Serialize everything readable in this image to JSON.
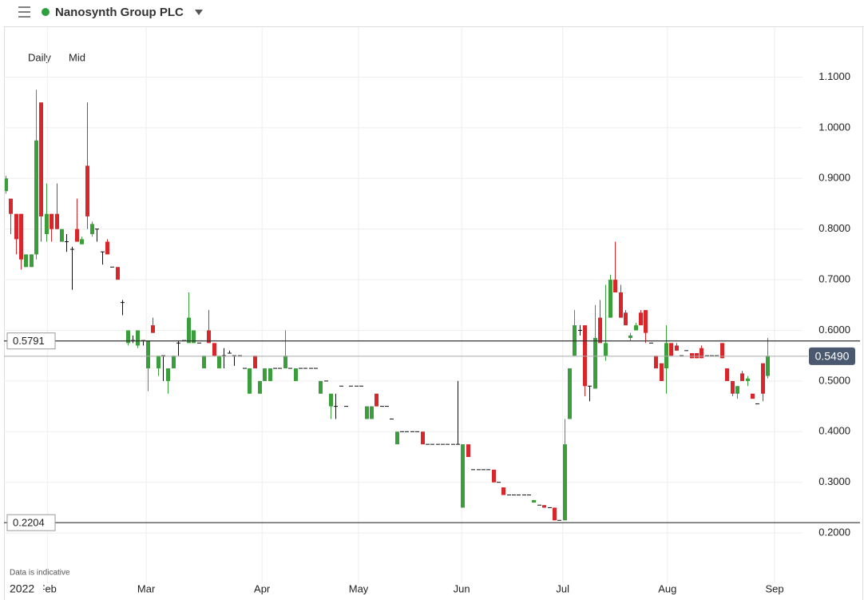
{
  "header": {
    "title": "Nanosynth Group PLC"
  },
  "chart_data": {
    "type": "candlestick",
    "interval": "Daily",
    "price_type": "Mid",
    "note": "Data is indicative",
    "year": "2022",
    "up_color": "#3a9f3a",
    "down_color": "#d9262b",
    "flat_color": "#111111",
    "xlim": [
      -0.3,
      156.9
    ],
    "xticks": [
      {
        "value": 8.3,
        "label": "Feb"
      },
      {
        "value": 27.7,
        "label": "Mar"
      },
      {
        "value": 50.5,
        "label": "Apr"
      },
      {
        "value": 69.5,
        "label": "May"
      },
      {
        "value": 89.8,
        "label": "Jun"
      },
      {
        "value": 109.7,
        "label": "Jul"
      },
      {
        "value": 130.3,
        "label": "Aug"
      },
      {
        "value": 151.4,
        "label": "Sep"
      }
    ],
    "ylim": [
      0.1008,
      1.1986
    ],
    "yticks": [
      {
        "value": 0.2,
        "label": "0.2000"
      },
      {
        "value": 0.3,
        "label": "0.3000"
      },
      {
        "value": 0.4,
        "label": "0.4000"
      },
      {
        "value": 0.5,
        "label": "0.5000"
      },
      {
        "value": 0.6,
        "label": "0.6000"
      },
      {
        "value": 0.7,
        "label": "0.7000"
      },
      {
        "value": 0.8,
        "label": "0.8000"
      },
      {
        "value": 0.9,
        "label": "0.9000"
      },
      {
        "value": 1.0,
        "label": "1.0000"
      },
      {
        "value": 1.1,
        "label": "1.1000"
      }
    ],
    "grid": true,
    "price_lines": [
      0.5791,
      0.2204
    ],
    "last_price": {
      "value": 0.549,
      "label": "0.5490"
    },
    "ohlc": [
      [
        0.875,
        0.905,
        0.87,
        0.9
      ],
      [
        0.86,
        0.86,
        0.79,
        0.83
      ],
      [
        0.83,
        0.83,
        0.75,
        0.78
      ],
      [
        0.83,
        0.83,
        0.72,
        0.74
      ],
      [
        0.725,
        0.75,
        0.725,
        0.75
      ],
      [
        0.725,
        0.75,
        0.725,
        0.75
      ],
      [
        0.75,
        1.075,
        0.74,
        0.975
      ],
      [
        1.05,
        1.05,
        0.775,
        0.825
      ],
      [
        0.79,
        0.89,
        0.775,
        0.83
      ],
      [
        0.83,
        0.83,
        0.775,
        0.8
      ],
      [
        0.83,
        0.89,
        0.8,
        0.8
      ],
      [
        0.775,
        0.8,
        0.775,
        0.8
      ],
      [
        0.775,
        0.79,
        0.755,
        0.775
      ],
      [
        0.76,
        0.765,
        0.68,
        0.76
      ],
      [
        0.8,
        0.86,
        0.78,
        0.775
      ],
      [
        0.77,
        0.785,
        0.77,
        0.78
      ],
      [
        0.925,
        1.05,
        0.8,
        0.825
      ],
      [
        0.79,
        0.815,
        0.785,
        0.81
      ],
      [
        0.8,
        0.8,
        0.775,
        0.8
      ],
      [
        0.755,
        0.755,
        0.73,
        0.755
      ],
      [
        0.775,
        0.78,
        0.75,
        0.75
      ],
      [
        0.725,
        0.725,
        0.725,
        0.725
      ],
      [
        0.725,
        0.725,
        0.7,
        0.7
      ],
      [
        0.655,
        0.66,
        0.63,
        0.655
      ],
      [
        0.575,
        0.6,
        0.57,
        0.6
      ],
      [
        0.58,
        0.59,
        0.575,
        0.58
      ],
      [
        0.57,
        0.6,
        0.565,
        0.6
      ],
      [
        0.58,
        0.58,
        0.57,
        0.58
      ],
      [
        0.525,
        0.58,
        0.48,
        0.58
      ],
      [
        0.61,
        0.625,
        0.595,
        0.595
      ],
      [
        0.525,
        0.55,
        0.51,
        0.55
      ],
      [
        0.55,
        0.55,
        0.5,
        0.55
      ],
      [
        0.5,
        0.525,
        0.475,
        0.525
      ],
      [
        0.525,
        0.55,
        0.525,
        0.55
      ],
      [
        0.575,
        0.58,
        0.55,
        0.575
      ],
      [
        0.58,
        0.58,
        0.58,
        0.58
      ],
      [
        0.575,
        0.675,
        0.575,
        0.625
      ],
      [
        0.575,
        0.6,
        0.575,
        0.6
      ],
      [
        0.575,
        0.575,
        0.575,
        0.575
      ],
      [
        0.525,
        0.55,
        0.525,
        0.55
      ],
      [
        0.6,
        0.64,
        0.575,
        0.575
      ],
      [
        0.575,
        0.575,
        0.55,
        0.55
      ],
      [
        0.525,
        0.55,
        0.525,
        0.55
      ],
      [
        0.55,
        0.565,
        0.525,
        0.55
      ],
      [
        0.555,
        0.56,
        0.555,
        0.555
      ],
      [
        0.55,
        0.55,
        0.53,
        0.55
      ],
      [
        0.55,
        0.55,
        0.55,
        0.55
      ],
      [
        0.525,
        0.525,
        0.525,
        0.525
      ],
      [
        0.475,
        0.525,
        0.475,
        0.525
      ],
      [
        0.55,
        0.55,
        0.525,
        0.525
      ],
      [
        0.475,
        0.5,
        0.475,
        0.5
      ],
      [
        0.5,
        0.525,
        0.5,
        0.525
      ],
      [
        0.5,
        0.525,
        0.5,
        0.525
      ],
      [
        0.525,
        0.525,
        0.525,
        0.525
      ],
      [
        0.525,
        0.525,
        0.525,
        0.525
      ],
      [
        0.525,
        0.6,
        0.525,
        0.55
      ],
      [
        0.525,
        0.525,
        0.525,
        0.525
      ],
      [
        0.5,
        0.525,
        0.5,
        0.525
      ],
      [
        0.525,
        0.525,
        0.525,
        0.525
      ],
      [
        0.525,
        0.525,
        0.525,
        0.525
      ],
      [
        0.525,
        0.525,
        0.525,
        0.525
      ],
      [
        0.525,
        0.525,
        0.525,
        0.525
      ],
      [
        0.475,
        0.5,
        0.475,
        0.5
      ],
      [
        0.5,
        0.5,
        0.5,
        0.5
      ],
      [
        0.45,
        0.475,
        0.425,
        0.475
      ],
      [
        0.45,
        0.475,
        0.425,
        0.45
      ],
      [
        0.49,
        0.49,
        0.49,
        0.49
      ],
      [
        0.45,
        0.45,
        0.45,
        0.45
      ],
      [
        0.49,
        0.49,
        0.49,
        0.49
      ],
      [
        0.49,
        0.49,
        0.49,
        0.49
      ],
      [
        0.49,
        0.49,
        0.49,
        0.49
      ],
      [
        0.425,
        0.45,
        0.425,
        0.45
      ],
      [
        0.425,
        0.45,
        0.425,
        0.45
      ],
      [
        0.475,
        0.475,
        0.45,
        0.45
      ],
      [
        0.45,
        0.45,
        0.45,
        0.45
      ],
      [
        0.45,
        0.45,
        0.45,
        0.45
      ],
      [
        0.425,
        0.425,
        0.425,
        0.425
      ],
      [
        0.375,
        0.4,
        0.375,
        0.4
      ],
      [
        0.4,
        0.4,
        0.4,
        0.4
      ],
      [
        0.4,
        0.4,
        0.4,
        0.4
      ],
      [
        0.4,
        0.4,
        0.4,
        0.4
      ],
      [
        0.4,
        0.4,
        0.4,
        0.4
      ],
      [
        0.4,
        0.4,
        0.375,
        0.375
      ],
      [
        0.375,
        0.375,
        0.375,
        0.375
      ],
      [
        0.375,
        0.375,
        0.375,
        0.375
      ],
      [
        0.375,
        0.375,
        0.375,
        0.375
      ],
      [
        0.375,
        0.375,
        0.375,
        0.375
      ],
      [
        0.375,
        0.375,
        0.375,
        0.375
      ],
      [
        0.375,
        0.375,
        0.375,
        0.375
      ],
      [
        0.375,
        0.5,
        0.375,
        0.375
      ],
      [
        0.25,
        0.375,
        0.25,
        0.375
      ],
      [
        0.375,
        0.375,
        0.35,
        0.35
      ],
      [
        0.325,
        0.325,
        0.325,
        0.325
      ],
      [
        0.325,
        0.325,
        0.325,
        0.325
      ],
      [
        0.325,
        0.325,
        0.325,
        0.325
      ],
      [
        0.325,
        0.325,
        0.325,
        0.325
      ],
      [
        0.325,
        0.325,
        0.3,
        0.3
      ],
      [
        0.3,
        0.3,
        0.3,
        0.3
      ],
      [
        0.29,
        0.29,
        0.275,
        0.275
      ],
      [
        0.275,
        0.275,
        0.275,
        0.275
      ],
      [
        0.275,
        0.275,
        0.275,
        0.275
      ],
      [
        0.275,
        0.275,
        0.275,
        0.275
      ],
      [
        0.275,
        0.275,
        0.275,
        0.275
      ],
      [
        0.275,
        0.275,
        0.275,
        0.275
      ],
      [
        0.26,
        0.265,
        0.26,
        0.265
      ],
      [
        0.255,
        0.255,
        0.255,
        0.255
      ],
      [
        0.255,
        0.255,
        0.25,
        0.25
      ],
      [
        0.25,
        0.25,
        0.25,
        0.25
      ],
      [
        0.25,
        0.25,
        0.225,
        0.225
      ],
      [
        0.225,
        0.225,
        0.225,
        0.225
      ],
      [
        0.225,
        0.425,
        0.225,
        0.375
      ],
      [
        0.425,
        0.525,
        0.425,
        0.525
      ],
      [
        0.55,
        0.64,
        0.55,
        0.61
      ],
      [
        0.6,
        0.61,
        0.59,
        0.6
      ],
      [
        0.61,
        0.61,
        0.47,
        0.49
      ],
      [
        0.49,
        0.49,
        0.46,
        0.49
      ],
      [
        0.485,
        0.65,
        0.485,
        0.585
      ],
      [
        0.625,
        0.66,
        0.575,
        0.575
      ],
      [
        0.55,
        0.69,
        0.54,
        0.575
      ],
      [
        0.625,
        0.71,
        0.625,
        0.7
      ],
      [
        0.7,
        0.775,
        0.675,
        0.675
      ],
      [
        0.675,
        0.69,
        0.625,
        0.625
      ],
      [
        0.635,
        0.64,
        0.61,
        0.61
      ],
      [
        0.585,
        0.595,
        0.58,
        0.59
      ],
      [
        0.6,
        0.615,
        0.6,
        0.61
      ],
      [
        0.635,
        0.64,
        0.61,
        0.61
      ],
      [
        0.64,
        0.64,
        0.575,
        0.595
      ],
      [
        0.575,
        0.575,
        0.575,
        0.575
      ],
      [
        0.55,
        0.55,
        0.525,
        0.525
      ],
      [
        0.535,
        0.535,
        0.5,
        0.5
      ],
      [
        0.525,
        0.61,
        0.475,
        0.575
      ],
      [
        0.575,
        0.575,
        0.55,
        0.55
      ],
      [
        0.57,
        0.575,
        0.56,
        0.56
      ],
      [
        0.55,
        0.55,
        0.55,
        0.55
      ],
      [
        0.56,
        0.56,
        0.56,
        0.56
      ],
      [
        0.555,
        0.555,
        0.545,
        0.545
      ],
      [
        0.555,
        0.555,
        0.545,
        0.545
      ],
      [
        0.565,
        0.57,
        0.545,
        0.545
      ],
      [
        0.55,
        0.55,
        0.55,
        0.55
      ],
      [
        0.55,
        0.55,
        0.55,
        0.55
      ],
      [
        0.55,
        0.55,
        0.55,
        0.55
      ],
      [
        0.575,
        0.575,
        0.545,
        0.545
      ],
      [
        0.525,
        0.525,
        0.5,
        0.5
      ],
      [
        0.5,
        0.5,
        0.47,
        0.475
      ],
      [
        0.475,
        0.49,
        0.465,
        0.49
      ],
      [
        0.515,
        0.52,
        0.5,
        0.5
      ],
      [
        0.5,
        0.51,
        0.49,
        0.505
      ],
      [
        0.475,
        0.475,
        0.465,
        0.465
      ],
      [
        0.455,
        0.455,
        0.455,
        0.455
      ],
      [
        0.535,
        0.535,
        0.46,
        0.475
      ],
      [
        0.51,
        0.585,
        0.505,
        0.55
      ]
    ]
  }
}
